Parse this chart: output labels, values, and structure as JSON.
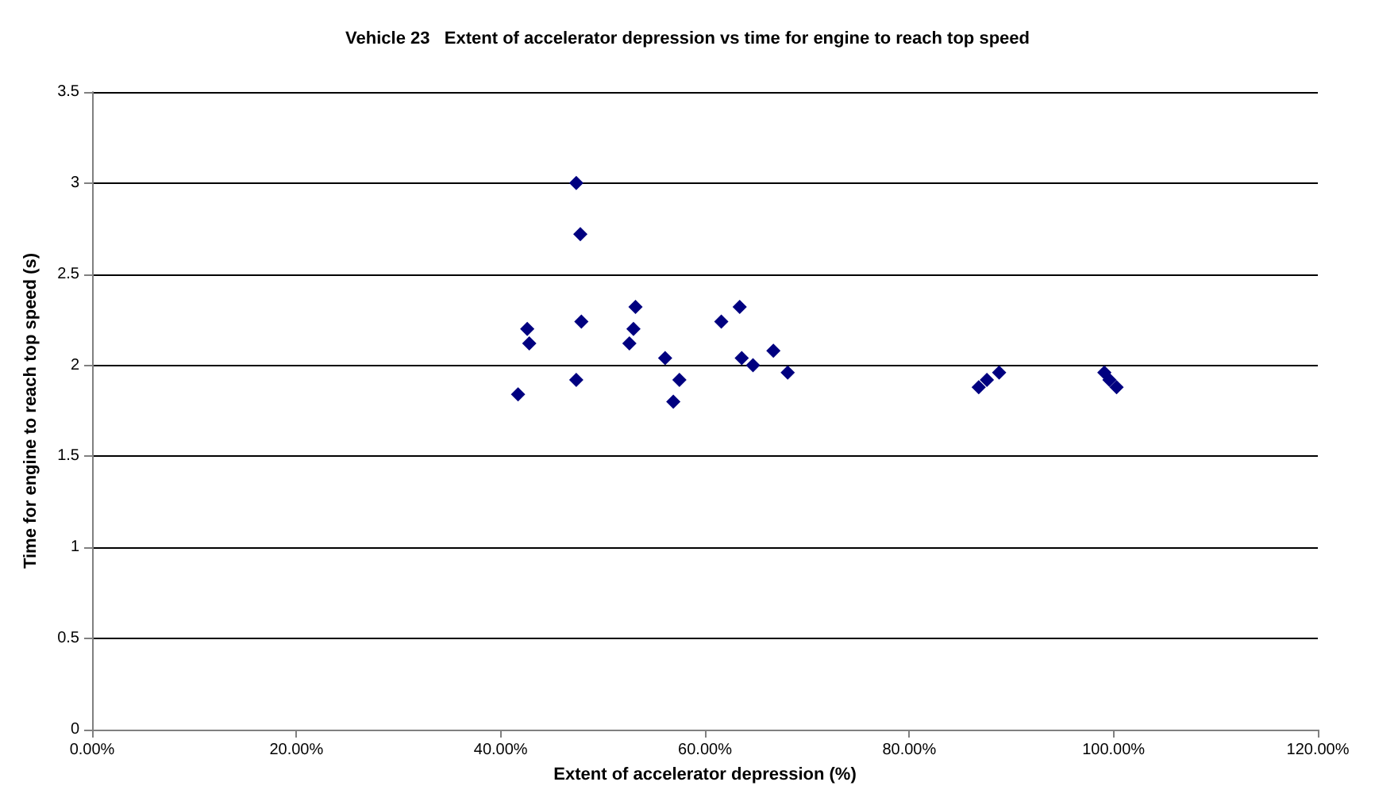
{
  "chart_data": {
    "type": "scatter",
    "title": "Vehicle 23   Extent of accelerator depression vs time for engine to reach top speed",
    "xlabel": "Extent of accelerator depression (%)",
    "ylabel": "Time for engine to reach top speed (s)",
    "x": [
      0.417,
      0.426,
      0.428,
      0.474,
      0.478,
      0.474,
      0.479,
      0.526,
      0.53,
      0.532,
      0.561,
      0.569,
      0.575,
      0.616,
      0.634,
      0.636,
      0.647,
      0.667,
      0.681,
      0.868,
      0.876,
      0.888,
      0.991,
      0.996,
      1.003
    ],
    "series": [
      {
        "color": "#000080",
        "values": [
          1.84,
          2.2,
          2.12,
          3.0,
          2.72,
          1.92,
          2.24,
          2.12,
          2.2,
          2.32,
          2.04,
          1.8,
          1.92,
          2.24,
          2.32,
          2.04,
          2.0,
          2.08,
          1.96,
          1.88,
          1.92,
          1.96,
          1.96,
          1.92,
          1.88
        ]
      }
    ],
    "xlim": [
      0,
      1.2
    ],
    "xticks": [
      {
        "value": 0,
        "label": "0.00%"
      },
      {
        "value": 0.2,
        "label": "20.00%"
      },
      {
        "value": 0.4,
        "label": "40.00%"
      },
      {
        "value": 0.6,
        "label": "60.00%"
      },
      {
        "value": 0.8,
        "label": "80.00%"
      },
      {
        "value": 1,
        "label": "100.00%"
      },
      {
        "value": 1.2,
        "label": "120.00%"
      }
    ],
    "ylim": [
      0,
      3.5
    ],
    "yticks": [
      0,
      0.5,
      1,
      1.5,
      2,
      2.5,
      3,
      3.5
    ],
    "grid": "y",
    "marker": "diamond"
  }
}
